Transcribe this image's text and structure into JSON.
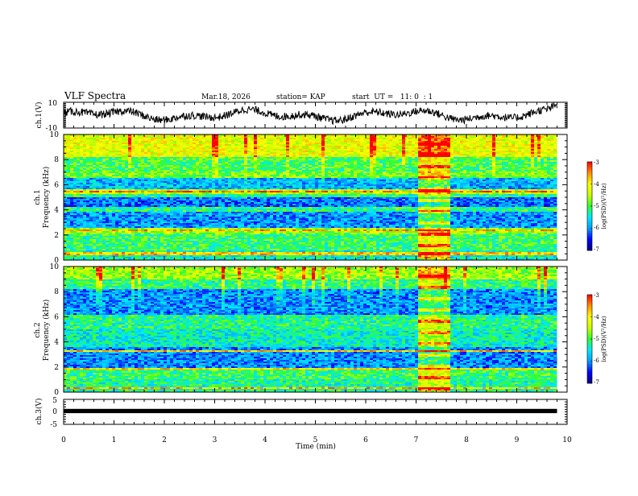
{
  "header": {
    "title": "VLF Spectra",
    "date": "Mar.18, 2026",
    "station": "station= KAP",
    "start": "start  UT =   11: 0  : 1"
  },
  "chart_data": [
    {
      "type": "line",
      "name": "ch1-waveform",
      "ylabel": "ch.1(V)",
      "ylim": [
        -10,
        10
      ],
      "ytick_labels": [
        "10",
        "-10"
      ],
      "xlim": [
        0,
        10
      ]
    },
    {
      "type": "heatmap",
      "name": "ch1-spectrogram",
      "ylabel_top": "ch.1",
      "ylabel": "Frequency  (kHz)",
      "ylim": [
        0,
        10
      ],
      "yticks": [
        0,
        2,
        4,
        6,
        8,
        10
      ],
      "xlim": [
        0,
        10
      ],
      "data_end_min": 9.8,
      "colorbar": {
        "label": "log(PSD)(V²/Hz)",
        "range": [
          -7,
          -3
        ],
        "ticks": [
          "-3",
          "-4",
          "-5",
          "-6",
          "-7"
        ]
      },
      "burst": {
        "start_min": 7.05,
        "end_min": 7.62
      }
    },
    {
      "type": "heatmap",
      "name": "ch2-spectrogram",
      "ylabel_top": "ch.2",
      "ylabel": "Frequency  (kHz)",
      "ylim": [
        0,
        10
      ],
      "yticks": [
        0,
        2,
        4,
        6,
        8,
        10
      ],
      "xlim": [
        0,
        10
      ],
      "data_end_min": 9.8,
      "colorbar": {
        "label": "log(PSD)(V²/Hz)",
        "range": [
          -7,
          -3
        ],
        "ticks": [
          "-3",
          "-4",
          "-5",
          "-6",
          "-7"
        ]
      },
      "burst": {
        "start_min": 7.05,
        "end_min": 7.62
      }
    },
    {
      "type": "line",
      "name": "ch3-waveform",
      "ylabel": "ch.3(V)",
      "ylim": [
        -5,
        5
      ],
      "ytick_labels": [
        "5",
        "0",
        "-5"
      ],
      "xlim": [
        0,
        10
      ],
      "xlabel": "Time  (min)",
      "xticks": [
        0,
        1,
        2,
        3,
        4,
        5,
        6,
        7,
        8,
        9,
        10
      ]
    }
  ],
  "colors": {
    "trace": "#000000",
    "axis": "#000000",
    "cmap": [
      "#00007f",
      "#0000ff",
      "#00a0ff",
      "#00e8ff",
      "#30ff30",
      "#c8ff00",
      "#ffff00",
      "#ff9000",
      "#ff0000"
    ]
  }
}
